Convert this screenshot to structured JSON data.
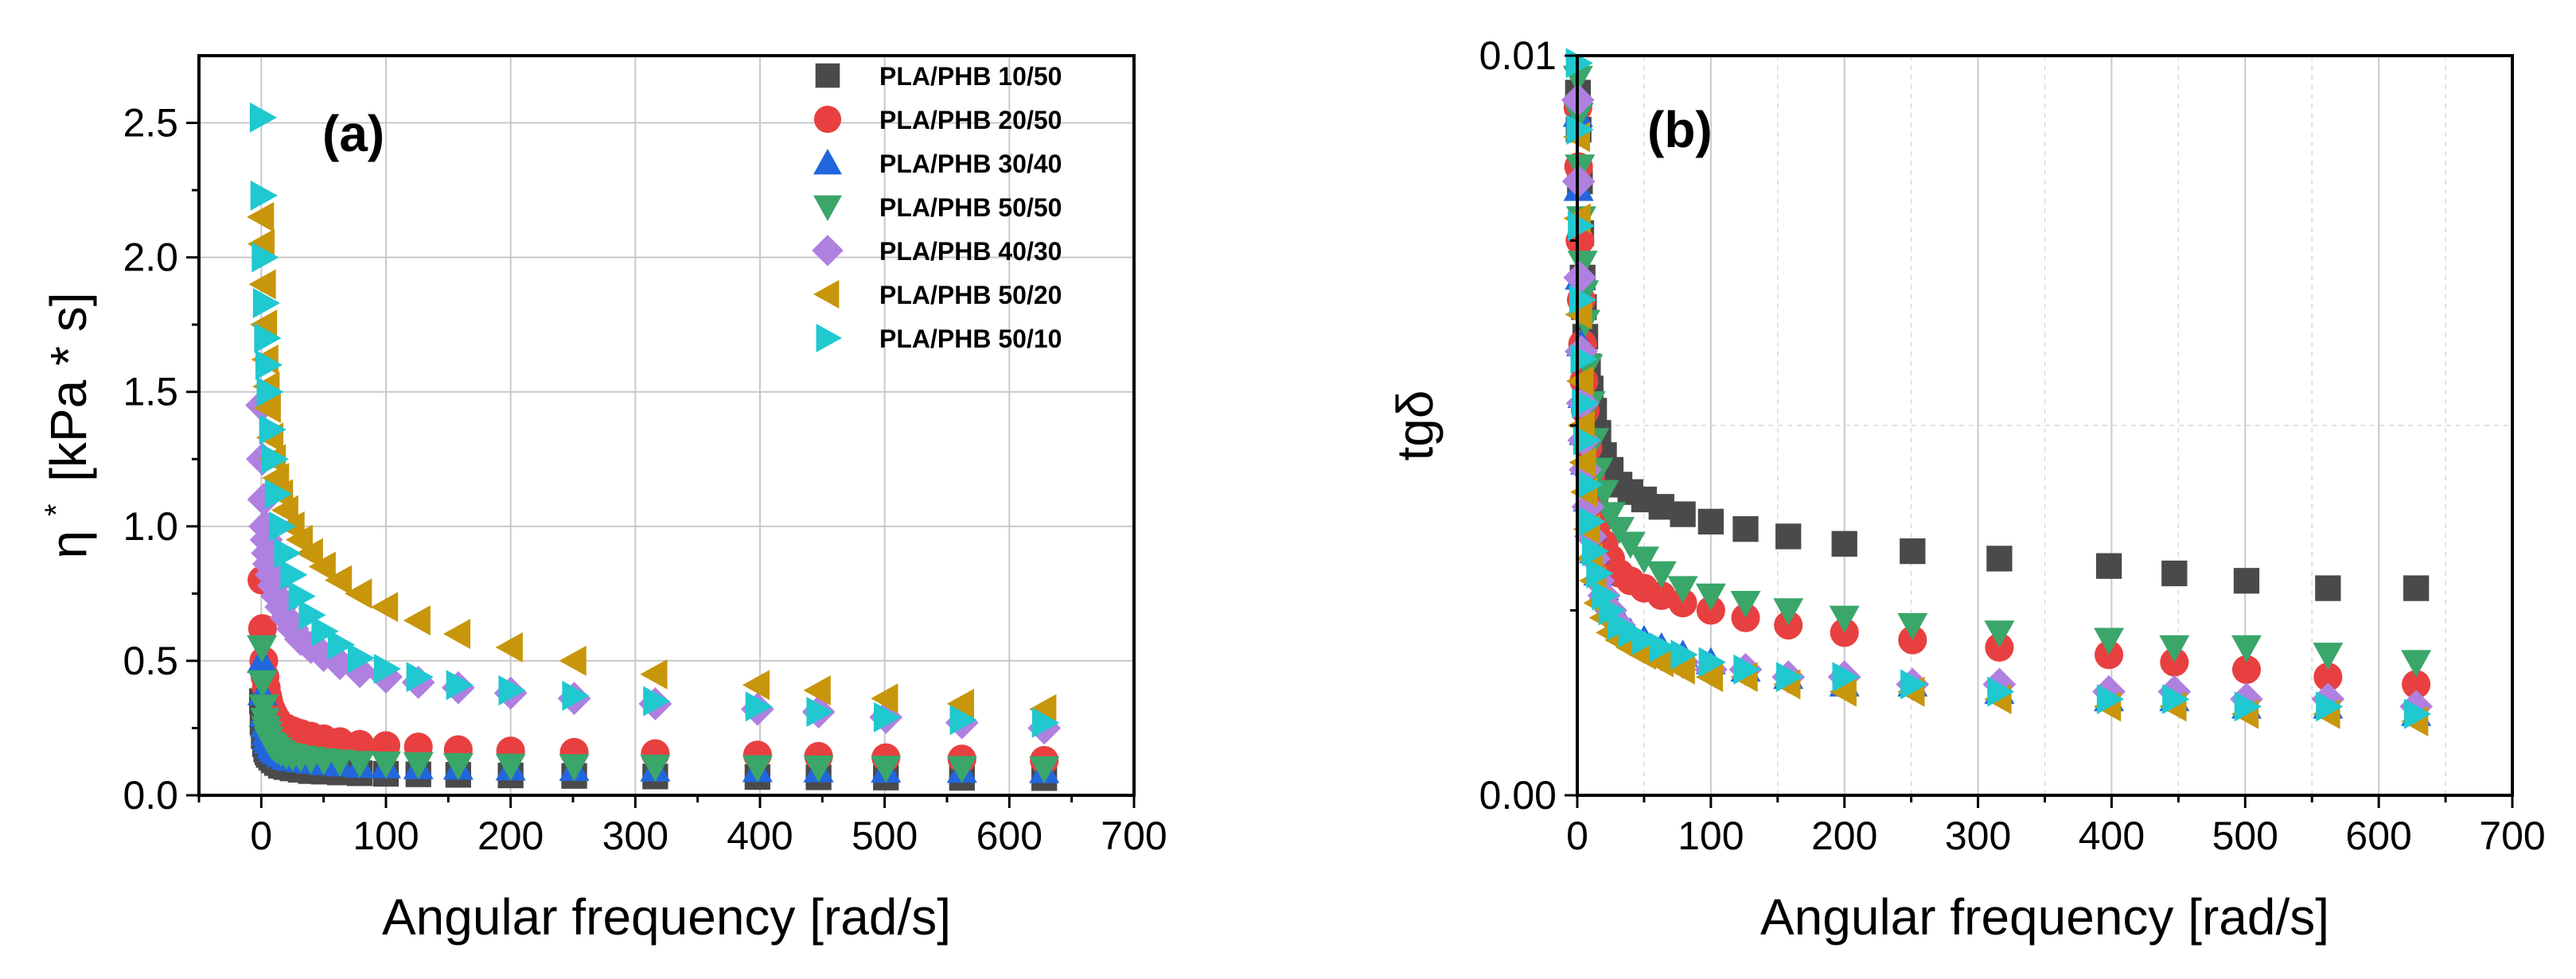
{
  "chart_data": [
    {
      "type": "scatter",
      "panel_label": "(a)",
      "xlabel": "Angular frequency [rad/s]",
      "ylabel": "η* [kPa * s]",
      "ylabel_symbol": "η",
      "ylabel_sup": "*",
      "ylabel_unit": "[kPa * s]",
      "xlim": [
        -50,
        700
      ],
      "ylim": [
        0,
        2.75
      ],
      "xticks": [
        0,
        100,
        200,
        300,
        400,
        500,
        600,
        700
      ],
      "xtick_labels": [
        "0",
        "100",
        "200",
        "300",
        "400",
        "500",
        "600",
        "700"
      ],
      "yticks": [
        0,
        0.5,
        1.0,
        1.5,
        2.0,
        2.5
      ],
      "ytick_labels": [
        "0.0",
        "0.5",
        "1.0",
        "1.5",
        "2.0",
        "2.5"
      ],
      "legend_position": "top-right",
      "x": [
        0.5,
        1,
        2,
        3,
        4,
        5,
        6,
        8,
        10,
        12.6,
        15.8,
        20,
        25,
        31.6,
        39.8,
        50,
        63,
        79,
        100,
        126,
        158,
        200,
        251,
        316,
        398,
        447,
        501,
        562,
        628
      ],
      "series": [
        {
          "name": "PLA/PHB 10/50",
          "color": "#4a4a4a",
          "marker": "square",
          "values": [
            0.35,
            0.27,
            0.22,
            0.19,
            0.17,
            0.16,
            0.15,
            0.14,
            0.13,
            0.12,
            0.11,
            0.105,
            0.1,
            0.095,
            0.09,
            0.088,
            0.085,
            0.082,
            0.08,
            0.078,
            0.076,
            0.074,
            0.072,
            0.07,
            0.068,
            0.067,
            0.066,
            0.065,
            0.064
          ]
        },
        {
          "name": "PLA/PHB 20/50",
          "color": "#e84040",
          "marker": "circle",
          "values": [
            0.8,
            0.62,
            0.5,
            0.44,
            0.4,
            0.37,
            0.35,
            0.32,
            0.3,
            0.28,
            0.26,
            0.25,
            0.24,
            0.23,
            0.22,
            0.21,
            0.2,
            0.19,
            0.185,
            0.18,
            0.17,
            0.165,
            0.16,
            0.155,
            0.15,
            0.145,
            0.14,
            0.135,
            0.13
          ]
        },
        {
          "name": "PLA/PHB 30/40",
          "color": "#2266dd",
          "marker": "triangle-up",
          "values": [
            0.5,
            0.38,
            0.3,
            0.26,
            0.23,
            0.21,
            0.2,
            0.18,
            0.17,
            0.16,
            0.15,
            0.14,
            0.135,
            0.13,
            0.125,
            0.12,
            0.115,
            0.11,
            0.108,
            0.105,
            0.103,
            0.1,
            0.098,
            0.096,
            0.094,
            0.093,
            0.092,
            0.091,
            0.09
          ]
        },
        {
          "name": "PLA/PHB 50/50",
          "color": "#3aa66a",
          "marker": "triangle-down",
          "values": [
            0.55,
            0.42,
            0.33,
            0.28,
            0.25,
            0.23,
            0.21,
            0.19,
            0.18,
            0.17,
            0.16,
            0.15,
            0.145,
            0.14,
            0.135,
            0.13,
            0.125,
            0.12,
            0.118,
            0.115,
            0.112,
            0.11,
            0.108,
            0.106,
            0.104,
            0.103,
            0.102,
            0.101,
            0.1
          ]
        },
        {
          "name": "PLA/PHB 40/30",
          "color": "#b080e0",
          "marker": "diamond",
          "values": [
            1.45,
            1.25,
            1.1,
            1.0,
            0.95,
            0.9,
            0.86,
            0.82,
            0.78,
            0.74,
            0.7,
            0.66,
            0.62,
            0.58,
            0.55,
            0.52,
            0.49,
            0.46,
            0.44,
            0.42,
            0.4,
            0.38,
            0.36,
            0.34,
            0.32,
            0.31,
            0.29,
            0.27,
            0.25
          ]
        },
        {
          "name": "PLA/PHB 50/20",
          "color": "#c8960a",
          "marker": "triangle-left",
          "values": [
            2.15,
            2.05,
            1.9,
            1.75,
            1.62,
            1.52,
            1.44,
            1.33,
            1.25,
            1.18,
            1.12,
            1.06,
            1.0,
            0.95,
            0.9,
            0.85,
            0.8,
            0.75,
            0.7,
            0.65,
            0.6,
            0.55,
            0.5,
            0.45,
            0.41,
            0.39,
            0.36,
            0.34,
            0.32
          ]
        },
        {
          "name": "PLA/PHB 50/10",
          "color": "#20c8d0",
          "marker": "triangle-right",
          "values": [
            2.52,
            2.23,
            2.0,
            1.83,
            1.7,
            1.6,
            1.5,
            1.36,
            1.25,
            1.12,
            1.0,
            0.9,
            0.82,
            0.74,
            0.67,
            0.61,
            0.56,
            0.51,
            0.47,
            0.44,
            0.41,
            0.39,
            0.37,
            0.35,
            0.33,
            0.31,
            0.29,
            0.28,
            0.27
          ]
        }
      ]
    },
    {
      "type": "scatter",
      "panel_label": "(b)",
      "xlabel": "Angular frequency [rad/s]",
      "ylabel": "tgδ",
      "xlim": [
        0,
        700
      ],
      "ylim": [
        0,
        0.01
      ],
      "xticks": [
        0,
        100,
        200,
        300,
        400,
        500,
        600,
        700
      ],
      "xtick_labels": [
        "0",
        "100",
        "200",
        "300",
        "400",
        "500",
        "600",
        "700"
      ],
      "yticks": [
        0,
        0.01
      ],
      "ytick_labels": [
        "0.00",
        "0.01"
      ],
      "x": [
        0.5,
        1,
        2,
        3,
        4,
        5,
        6,
        8,
        10,
        12.6,
        15.8,
        20,
        25,
        31.6,
        39.8,
        50,
        63,
        79,
        100,
        126,
        158,
        200,
        251,
        316,
        398,
        447,
        501,
        562,
        628
      ],
      "series": [
        {
          "name": "PLA/PHB 10/50",
          "color": "#4a4a4a",
          "marker": "square",
          "values": [
            0.0095,
            0.009,
            0.0083,
            0.0076,
            0.007,
            0.0066,
            0.0062,
            0.0058,
            0.0055,
            0.0052,
            0.0049,
            0.0046,
            0.0044,
            0.0042,
            0.0041,
            0.004,
            0.0039,
            0.0038,
            0.0037,
            0.0036,
            0.0035,
            0.0034,
            0.0033,
            0.0032,
            0.0031,
            0.003,
            0.0029,
            0.0028,
            0.0028
          ]
        },
        {
          "name": "PLA/PHB 20/50",
          "color": "#e84040",
          "marker": "circle",
          "values": [
            0.0093,
            0.0085,
            0.0075,
            0.0067,
            0.0061,
            0.0056,
            0.0052,
            0.0047,
            0.0043,
            0.004,
            0.0037,
            0.0034,
            0.0032,
            0.003,
            0.0029,
            0.0028,
            0.0027,
            0.0026,
            0.0025,
            0.0024,
            0.0023,
            0.0022,
            0.0021,
            0.002,
            0.0019,
            0.0018,
            0.0017,
            0.0016,
            0.0015
          ]
        },
        {
          "name": "PLA/PHB 30/40",
          "color": "#2266dd",
          "marker": "triangle-up",
          "values": [
            0.0092,
            0.0082,
            0.007,
            0.0061,
            0.0054,
            0.0049,
            0.0045,
            0.004,
            0.0036,
            0.0033,
            0.003,
            0.0028,
            0.0026,
            0.0024,
            0.0022,
            0.0021,
            0.002,
            0.0019,
            0.0018,
            0.0017,
            0.0016,
            0.0015,
            0.0015,
            0.0014,
            0.0013,
            0.0013,
            0.0012,
            0.0012,
            0.0011
          ]
        },
        {
          "name": "PLA/PHB 50/50",
          "color": "#3aa66a",
          "marker": "triangle-down",
          "values": [
            0.0097,
            0.0092,
            0.0085,
            0.0078,
            0.0072,
            0.0068,
            0.0064,
            0.0058,
            0.0053,
            0.0048,
            0.0044,
            0.0041,
            0.0038,
            0.0036,
            0.0034,
            0.0032,
            0.003,
            0.0028,
            0.0027,
            0.0026,
            0.0025,
            0.0024,
            0.0023,
            0.0022,
            0.0021,
            0.002,
            0.002,
            0.0019,
            0.0018
          ]
        },
        {
          "name": "PLA/PHB 40/30",
          "color": "#b080e0",
          "marker": "diamond",
          "values": [
            0.0094,
            0.0083,
            0.007,
            0.006,
            0.0053,
            0.0048,
            0.0044,
            0.0039,
            0.0035,
            0.0032,
            0.0029,
            0.0027,
            0.0025,
            0.0023,
            0.0021,
            0.002,
            0.0019,
            0.0018,
            0.0017,
            0.0017,
            0.0016,
            0.0016,
            0.0015,
            0.0015,
            0.0014,
            0.0014,
            0.0013,
            0.0013,
            0.0012
          ]
        },
        {
          "name": "PLA/PHB 50/20",
          "color": "#c8960a",
          "marker": "triangle-left",
          "values": [
            0.0089,
            0.0078,
            0.0065,
            0.0056,
            0.005,
            0.0045,
            0.0041,
            0.0036,
            0.0032,
            0.0029,
            0.0026,
            0.0024,
            0.0022,
            0.0021,
            0.002,
            0.0019,
            0.0018,
            0.0017,
            0.0016,
            0.0016,
            0.0015,
            0.0014,
            0.0014,
            0.0013,
            0.0012,
            0.0012,
            0.0011,
            0.0011,
            0.001
          ]
        },
        {
          "name": "PLA/PHB 50/10",
          "color": "#20c8d0",
          "marker": "triangle-right",
          "values": [
            0.0099,
            0.009,
            0.0077,
            0.0067,
            0.0059,
            0.0053,
            0.0048,
            0.0042,
            0.0037,
            0.0033,
            0.003,
            0.0027,
            0.0025,
            0.0023,
            0.0022,
            0.0021,
            0.002,
            0.0019,
            0.0018,
            0.0017,
            0.0016,
            0.0016,
            0.0015,
            0.0014,
            0.0013,
            0.0013,
            0.0012,
            0.0012,
            0.0011
          ]
        }
      ]
    }
  ]
}
